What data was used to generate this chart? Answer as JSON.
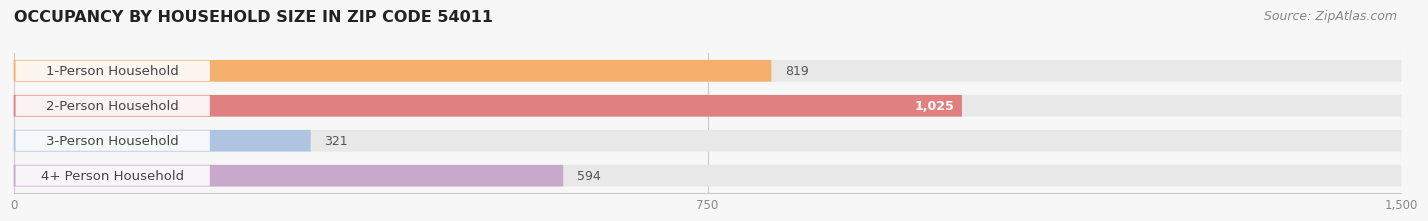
{
  "title": "OCCUPANCY BY HOUSEHOLD SIZE IN ZIP CODE 54011",
  "source": "Source: ZipAtlas.com",
  "categories": [
    "1-Person Household",
    "2-Person Household",
    "3-Person Household",
    "4+ Person Household"
  ],
  "values": [
    819,
    1025,
    321,
    594
  ],
  "bar_colors": [
    "#F5A85A",
    "#E07272",
    "#A8BFE0",
    "#C4A0C8"
  ],
  "value_labels": [
    "819",
    "1,025",
    "321",
    "594"
  ],
  "xlim_max": 1500,
  "xticks": [
    0,
    750,
    1500
  ],
  "xtick_labels": [
    "0",
    "750",
    "1,500"
  ],
  "bg_color": "#f7f7f7",
  "bar_bg_color": "#e8e8e8",
  "title_fontsize": 11.5,
  "label_fontsize": 9.5,
  "value_fontsize": 9,
  "source_fontsize": 9,
  "title_color": "#222222",
  "label_color": "#444444",
  "value_color_inside": "#ffffff",
  "value_color_outside": "#555555",
  "tick_color": "#888888"
}
